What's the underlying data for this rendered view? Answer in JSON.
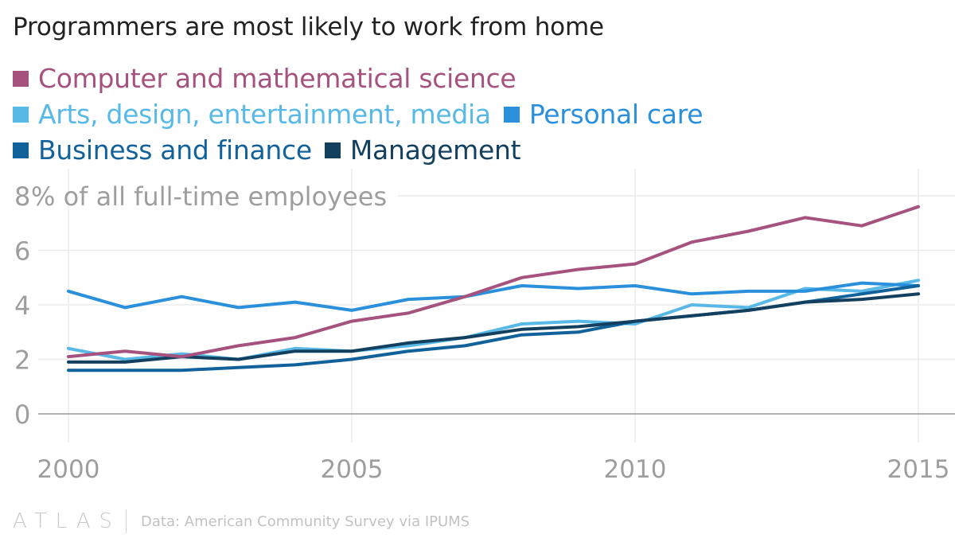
{
  "page": {
    "title": "Programmers are most likely to work from home",
    "logo": "ATLAS",
    "source": "Data: American Community Survey via IPUMS"
  },
  "chart_data": {
    "type": "line",
    "title": "Programmers are most likely to work from home",
    "ylabel": "% of all full-time employees",
    "ylim": [
      0,
      8
    ],
    "yticks": [
      0,
      2,
      4,
      6,
      8
    ],
    "xlim": [
      2000,
      2015
    ],
    "xticks": [
      2000,
      2005,
      2010,
      2015
    ],
    "x": [
      2000,
      2001,
      2002,
      2003,
      2004,
      2005,
      2006,
      2007,
      2008,
      2009,
      2010,
      2011,
      2012,
      2013,
      2014,
      2015
    ],
    "series": [
      {
        "name": "Computer and mathematical science",
        "color": "#a6527f",
        "values": [
          2.1,
          2.3,
          2.1,
          2.5,
          2.8,
          3.4,
          3.7,
          4.3,
          5.0,
          5.3,
          5.5,
          6.3,
          6.7,
          7.2,
          6.9,
          7.6
        ]
      },
      {
        "name": "Arts, design, entertainment, media",
        "color": "#58b8e6",
        "values": [
          2.4,
          2.0,
          2.2,
          2.0,
          2.4,
          2.3,
          2.5,
          2.8,
          3.3,
          3.4,
          3.3,
          4.0,
          3.9,
          4.6,
          4.5,
          4.9
        ]
      },
      {
        "name": "Personal care",
        "color": "#2a90dc",
        "values": [
          4.5,
          3.9,
          4.3,
          3.9,
          4.1,
          3.8,
          4.2,
          4.3,
          4.7,
          4.6,
          4.7,
          4.4,
          4.5,
          4.5,
          4.8,
          4.7
        ]
      },
      {
        "name": "Business and finance",
        "color": "#11629a",
        "values": [
          1.6,
          1.6,
          1.6,
          1.7,
          1.8,
          2.0,
          2.3,
          2.5,
          2.9,
          3.0,
          3.4,
          3.6,
          3.8,
          4.1,
          4.4,
          4.7
        ]
      },
      {
        "name": "Management",
        "color": "#13405f",
        "values": [
          1.9,
          1.9,
          2.1,
          2.0,
          2.3,
          2.3,
          2.6,
          2.8,
          3.1,
          3.2,
          3.4,
          3.6,
          3.8,
          4.1,
          4.2,
          4.4
        ]
      }
    ]
  }
}
